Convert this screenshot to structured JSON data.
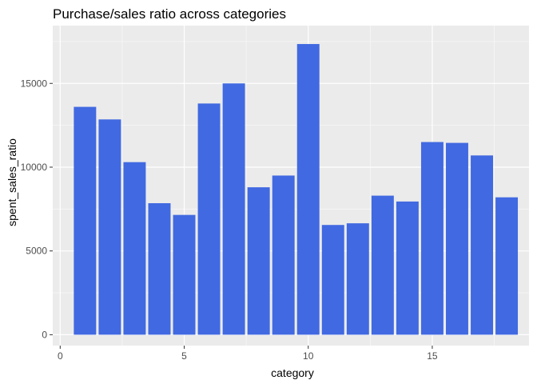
{
  "chart_data": {
    "type": "bar",
    "title": "Purchase/sales ratio across categories",
    "xlabel": "category",
    "ylabel": "spent_sales_ratio",
    "x": [
      1,
      2,
      3,
      4,
      5,
      6,
      7,
      8,
      9,
      10,
      11,
      12,
      13,
      14,
      15,
      16,
      17,
      18
    ],
    "values": [
      13600,
      12850,
      10300,
      7850,
      7150,
      13800,
      15000,
      8800,
      9500,
      17350,
      6550,
      6650,
      8300,
      7950,
      11500,
      11450,
      10700,
      8200
    ],
    "xlim": [
      -0.3,
      18.9
    ],
    "ylim": [
      -650,
      18450
    ],
    "xticks": [
      0,
      5,
      10,
      15
    ],
    "xtick_labels": [
      "0",
      "5",
      "10",
      "15"
    ],
    "yticks": [
      0,
      5000,
      10000,
      15000
    ],
    "ytick_labels": [
      "0",
      "5000",
      "10000",
      "15000"
    ],
    "grid": true,
    "colors": {
      "bar": "#4169e1",
      "panel": "#ebebeb",
      "grid_major": "#ffffff",
      "grid_minor": "#f7f7f7",
      "tick": "#333333"
    }
  }
}
